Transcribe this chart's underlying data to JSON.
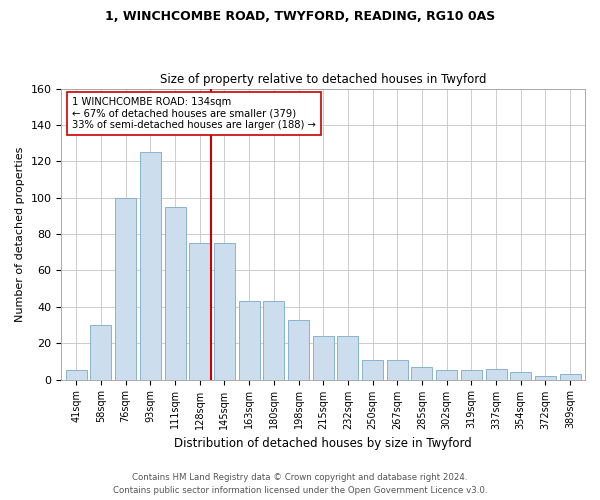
{
  "title1": "1, WINCHCOMBE ROAD, TWYFORD, READING, RG10 0AS",
  "title2": "Size of property relative to detached houses in Twyford",
  "xlabel": "Distribution of detached houses by size in Twyford",
  "ylabel": "Number of detached properties",
  "categories": [
    "41sqm",
    "58sqm",
    "76sqm",
    "93sqm",
    "111sqm",
    "128sqm",
    "145sqm",
    "163sqm",
    "180sqm",
    "198sqm",
    "215sqm",
    "232sqm",
    "250sqm",
    "267sqm",
    "285sqm",
    "302sqm",
    "319sqm",
    "337sqm",
    "354sqm",
    "372sqm",
    "389sqm"
  ],
  "values": [
    5,
    30,
    100,
    125,
    95,
    75,
    75,
    43,
    43,
    33,
    24,
    24,
    11,
    11,
    7,
    5,
    5,
    6,
    4,
    2,
    3
  ],
  "bar_color": "#ccdded",
  "bar_edge_color": "#7aaac8",
  "marker_bar_index": 5,
  "marker_label_line1": "1 WINCHCOMBE ROAD: 134sqm",
  "marker_label_line2": "← 67% of detached houses are smaller (379)",
  "marker_label_line3": "33% of semi-detached houses are larger (188) →",
  "marker_line_color": "#cc0000",
  "ylim": [
    0,
    160
  ],
  "yticks": [
    0,
    20,
    40,
    60,
    80,
    100,
    120,
    140,
    160
  ],
  "grid_color": "#cccccc",
  "footer_line1": "Contains HM Land Registry data © Crown copyright and database right 2024.",
  "footer_line2": "Contains public sector information licensed under the Open Government Licence v3.0.",
  "background_color": "#ffffff"
}
